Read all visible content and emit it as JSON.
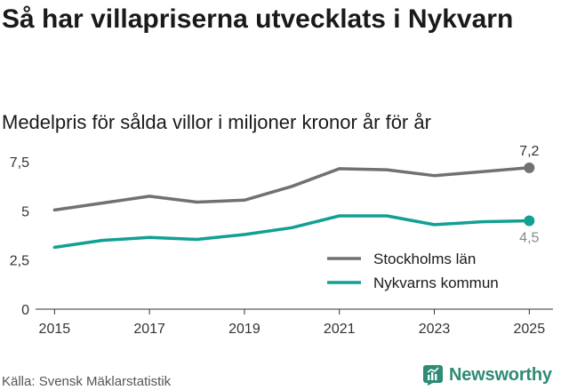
{
  "title": "Så har villapriserna utvecklats i Nykvarn",
  "subtitle": "Medelpris för sålda villor i miljoner kronor år för år",
  "source": "Källa: Svensk Mäklarstatistik",
  "brand": "Newsworthy",
  "chart_data": {
    "type": "line",
    "title": "Så har villapriserna utvecklats i Nykvarn",
    "subtitle": "Medelpris för sålda villor i miljoner kronor år för år",
    "xlabel": "",
    "ylabel": "",
    "x": [
      2015,
      2016,
      2017,
      2018,
      2019,
      2020,
      2021,
      2022,
      2023,
      2024,
      2025
    ],
    "xticks": [
      "2015",
      "2017",
      "2019",
      "2021",
      "2023",
      "2025"
    ],
    "yticks": [
      "0",
      "2,5",
      "5",
      "7,5"
    ],
    "ylim": [
      0,
      7.6
    ],
    "xlim": [
      2014.6,
      2025.5
    ],
    "series": [
      {
        "name": "Stockholms län",
        "color": "#717171",
        "values": [
          5.05,
          5.4,
          5.75,
          5.45,
          5.55,
          6.25,
          7.15,
          7.1,
          6.8,
          7.0,
          7.2
        ],
        "end_label": "7,2"
      },
      {
        "name": "Nykvarns kommun",
        "color": "#11a092",
        "values": [
          3.15,
          3.5,
          3.65,
          3.55,
          3.8,
          4.15,
          4.75,
          4.75,
          4.3,
          4.45,
          4.5
        ],
        "end_label": "4,5"
      }
    ],
    "legend": "bottom-right",
    "grid": false
  }
}
